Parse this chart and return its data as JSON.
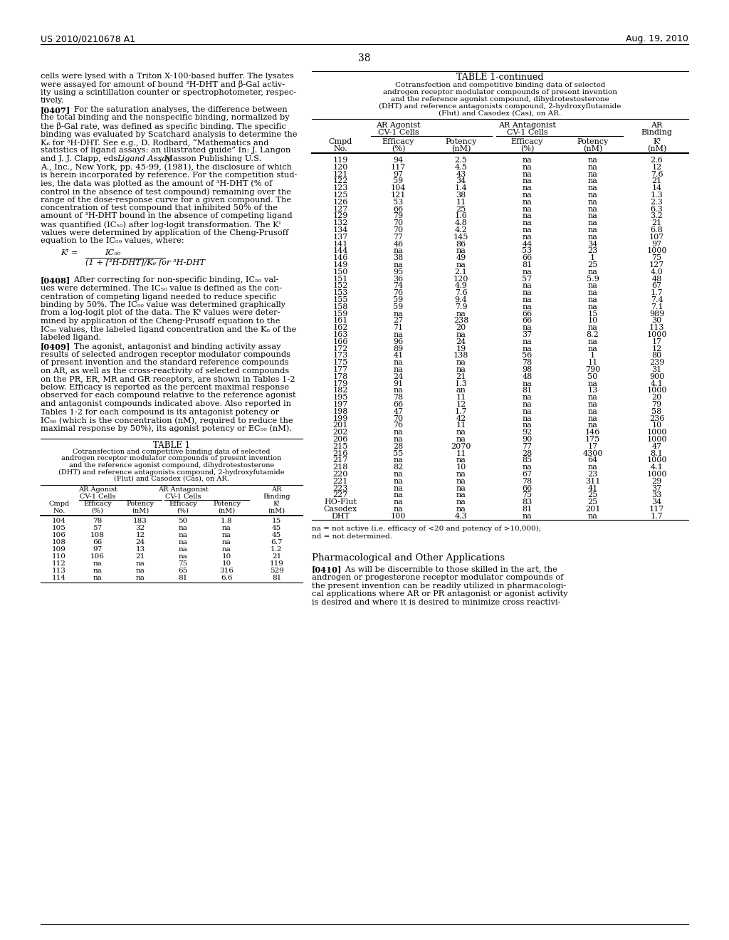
{
  "header_left": "US 2010/0210678 A1",
  "header_right": "Aug. 19, 2010",
  "page_number": "38",
  "table_title": "TABLE 1-continued",
  "table_subtitle_lines": [
    "Cotransfection and competitive binding data of selected",
    "androgen receptor modulator compounds of present invention",
    "and the reference agonist compound, dihydrotestosterone",
    "(DHT) and reference antagonists compound, 2-hydroxyflutamide",
    "(Flut) and Casodex (Cas), on AR."
  ],
  "table_data": [
    [
      "119",
      "94",
      "2.5",
      "na",
      "na",
      "2.6"
    ],
    [
      "120",
      "117",
      "4.5",
      "na",
      "na",
      "12"
    ],
    [
      "121",
      "97",
      "43",
      "na",
      "na",
      "7.6"
    ],
    [
      "122",
      "59",
      "34",
      "na",
      "na",
      "21"
    ],
    [
      "123",
      "104",
      "1.4",
      "na",
      "na",
      "14"
    ],
    [
      "125",
      "121",
      "38",
      "na",
      "na",
      "1.3"
    ],
    [
      "126",
      "53",
      "11",
      "na",
      "na",
      "2.3"
    ],
    [
      "127",
      "66",
      "25",
      "na",
      "na",
      "6.3"
    ],
    [
      "129",
      "79",
      "1.6",
      "na",
      "na",
      "3.2"
    ],
    [
      "132",
      "70",
      "4.8",
      "na",
      "na",
      "21"
    ],
    [
      "134",
      "70",
      "4.2",
      "na",
      "na",
      "6.8"
    ],
    [
      "137",
      "77",
      "145",
      "na",
      "na",
      "107"
    ],
    [
      "141",
      "46",
      "86",
      "44",
      "34",
      "97"
    ],
    [
      "144",
      "na",
      "na",
      "53",
      "23",
      "1000"
    ],
    [
      "146",
      "38",
      "49",
      "66",
      "1",
      "75"
    ],
    [
      "149",
      "na",
      "na",
      "81",
      "25",
      "127"
    ],
    [
      "150",
      "95",
      "2.1",
      "na",
      "na",
      "4.0"
    ],
    [
      "151",
      "36",
      "120",
      "57",
      "5.9",
      "48"
    ],
    [
      "152",
      "74",
      "4.9",
      "na",
      "na",
      "67"
    ],
    [
      "153",
      "76",
      "7.6",
      "na",
      "na",
      "1.7"
    ],
    [
      "155",
      "59",
      "9.4",
      "na",
      "na",
      "7.4"
    ],
    [
      "158",
      "59",
      "7.9",
      "na",
      "na",
      "7.1"
    ],
    [
      "159",
      "na",
      "na",
      "66",
      "15",
      "989"
    ],
    [
      "161",
      "27",
      "238",
      "66",
      "10",
      "30"
    ],
    [
      "162",
      "71",
      "20",
      "na",
      "na",
      "113"
    ],
    [
      "163",
      "na",
      "na",
      "37",
      "8.2",
      "1000"
    ],
    [
      "166",
      "96",
      "24",
      "na",
      "na",
      "17"
    ],
    [
      "172",
      "89",
      "19",
      "na",
      "na",
      "12"
    ],
    [
      "173",
      "41",
      "138",
      "56",
      "1",
      "80"
    ],
    [
      "175",
      "na",
      "na",
      "78",
      "11",
      "239"
    ],
    [
      "177",
      "na",
      "na",
      "98",
      "790",
      "31"
    ],
    [
      "178",
      "24",
      "21",
      "48",
      "50",
      "900"
    ],
    [
      "179",
      "91",
      "1.3",
      "na",
      "na",
      "4.1"
    ],
    [
      "182",
      "na",
      "an",
      "81",
      "13",
      "1000"
    ],
    [
      "195",
      "78",
      "11",
      "na",
      "na",
      "20"
    ],
    [
      "197",
      "66",
      "12",
      "na",
      "na",
      "79"
    ],
    [
      "198",
      "47",
      "1.7",
      "na",
      "na",
      "58"
    ],
    [
      "199",
      "70",
      "42",
      "na",
      "na",
      "236"
    ],
    [
      "201",
      "76",
      "11",
      "na",
      "na",
      "10"
    ],
    [
      "202",
      "na",
      "na",
      "92",
      "146",
      "1000"
    ],
    [
      "206",
      "na",
      "na",
      "90",
      "175",
      "1000"
    ],
    [
      "215",
      "28",
      "2070",
      "77",
      "17",
      "47"
    ],
    [
      "216",
      "55",
      "11",
      "28",
      "4300",
      "8.1"
    ],
    [
      "217",
      "na",
      "na",
      "85",
      "64",
      "1000"
    ],
    [
      "218",
      "82",
      "10",
      "na",
      "na",
      "4.1"
    ],
    [
      "220",
      "na",
      "na",
      "67",
      "23",
      "1000"
    ],
    [
      "221",
      "na",
      "na",
      "78",
      "311",
      "29"
    ],
    [
      "223",
      "na",
      "na",
      "66",
      "41",
      "37"
    ],
    [
      "227",
      "na",
      "na",
      "75",
      "25",
      "33"
    ],
    [
      "HO-Flut",
      "na",
      "na",
      "83",
      "25",
      "34"
    ],
    [
      "Casodex",
      "na",
      "na",
      "81",
      "201",
      "117"
    ],
    [
      "DHT",
      "100",
      "4.3",
      "na",
      "na",
      "1.7"
    ]
  ],
  "table_footnote1": "na = not active (i.e. efficacy of <20 and potency of >10,000);",
  "table_footnote2": "nd = not determined.",
  "bottom_section_title": "Pharmacological and Other Applications",
  "left_table1_subtitle_lines": [
    "Cotransfection and competitive binding data of selected",
    "androgen receptor modulator compounds of present invention",
    "and the reference agonist compound, dihydrotestosterone",
    "(DHT) and reference antagonists compound, 2-hydroxyfutamide",
    "(Flut) and Casodex (Cas), on AR."
  ],
  "left_table1_data": [
    [
      "104",
      "78",
      "183",
      "50",
      "1.8",
      "15"
    ],
    [
      "105",
      "57",
      "32",
      "na",
      "na",
      "45"
    ],
    [
      "106",
      "108",
      "12",
      "na",
      "na",
      "45"
    ],
    [
      "108",
      "66",
      "24",
      "na",
      "na",
      "6.7"
    ],
    [
      "109",
      "97",
      "13",
      "na",
      "na",
      "1.2"
    ],
    [
      "110",
      "106",
      "21",
      "na",
      "10",
      "21"
    ],
    [
      "112",
      "na",
      "na",
      "75",
      "10",
      "119"
    ],
    [
      "113",
      "na",
      "na",
      "65",
      "316",
      "529"
    ],
    [
      "114",
      "na",
      "na",
      "81",
      "6.6",
      "81"
    ]
  ]
}
